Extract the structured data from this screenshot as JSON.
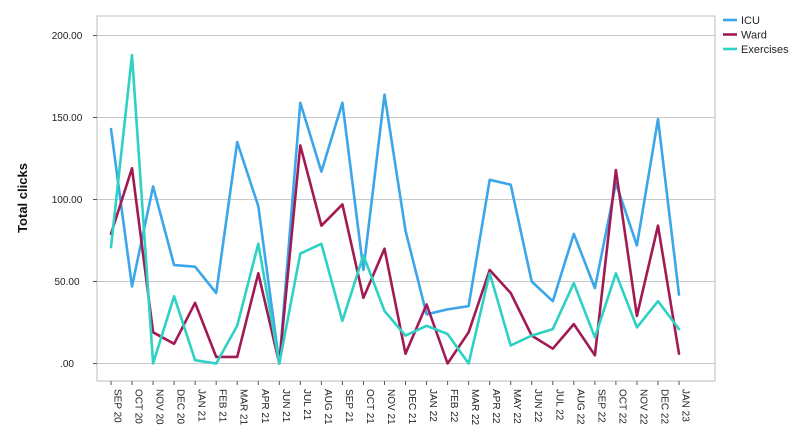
{
  "chart_data": {
    "type": "line",
    "title": "",
    "xlabel": "",
    "ylabel": "Total clicks",
    "ylim": [
      0,
      220
    ],
    "yticks": [
      0,
      50,
      100,
      150,
      200
    ],
    "ytick_labels": [
      ".00",
      "50.00",
      "100.00",
      "150.00",
      "200.00"
    ],
    "grid": "horizontal",
    "legend_position": "top-right",
    "categories": [
      "SEP 20",
      "OCT 20",
      "NOV 20",
      "DEC 20",
      "JAN 21",
      "FEB 21",
      "MAR 21",
      "APR 21",
      "JUN 21",
      "JUL 21",
      "AUG 21",
      "SEP 21",
      "OCT 21",
      "NOV 21",
      "DEC 21",
      "JAN 22",
      "FEB 22",
      "MAR 22",
      "APR 22",
      "MAY 22",
      "JUN 22",
      "JUL 22",
      "AUG 22",
      "SEP 22",
      "OCT 22",
      "NOV 22",
      "DEC 22",
      "JAN 23"
    ],
    "series": [
      {
        "name": "ICU",
        "color": "#3ba6ea",
        "values": [
          143,
          47,
          108,
          60,
          59,
          43,
          135,
          96,
          0,
          159,
          117,
          159,
          57,
          164,
          81,
          30,
          33,
          35,
          112,
          109,
          50,
          38,
          79,
          46,
          110,
          72,
          149,
          42
        ]
      },
      {
        "name": "Ward",
        "color": "#a21a53",
        "values": [
          79,
          119,
          19,
          12,
          37,
          4,
          4,
          55,
          0,
          133,
          84,
          97,
          40,
          70,
          6,
          36,
          0,
          19,
          57,
          43,
          17,
          9,
          24,
          5,
          118,
          29,
          84,
          6
        ]
      },
      {
        "name": "Exercises",
        "color": "#2ed1c4",
        "values": [
          71,
          188,
          0,
          41,
          2,
          0,
          23,
          73,
          0,
          67,
          73,
          26,
          66,
          32,
          17,
          23,
          18,
          0,
          55,
          11,
          17,
          21,
          49,
          16,
          55,
          22,
          38,
          21
        ]
      }
    ]
  }
}
